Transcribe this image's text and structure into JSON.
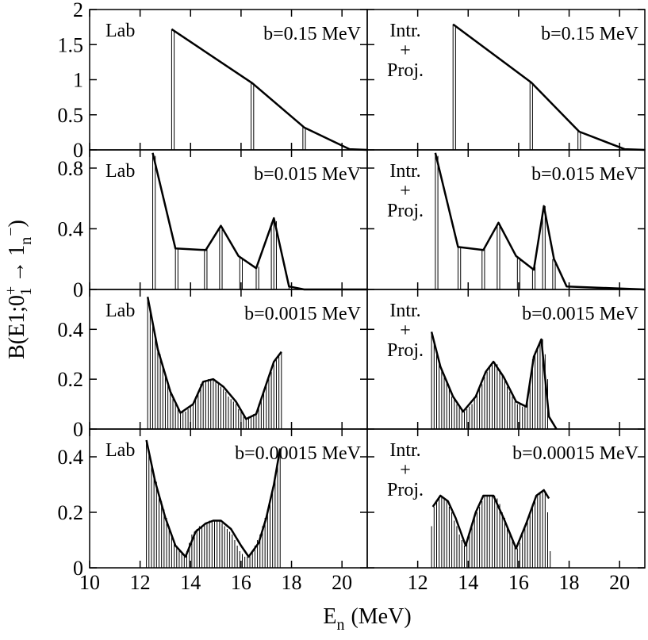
{
  "figure": {
    "ylabel": {
      "main": "B(E1;0",
      "sub1": "1",
      "sup1": "+",
      "arrow": "→",
      "one": "1",
      "sub2": "n",
      "sup2": "−",
      "close": ")"
    },
    "xlabel": {
      "main": "E",
      "sub": "n",
      "unit": "(MeV)"
    },
    "colors": {
      "line": "#000000",
      "background": "#ffffff"
    }
  },
  "chart_data": [
    {
      "type": "line",
      "panel": "lab-b-0.15",
      "label": "Lab",
      "label_lines": [
        "Lab"
      ],
      "annotation": "b=0.15 MeV",
      "xlim": [
        10,
        21
      ],
      "ylim": [
        0,
        2
      ],
      "xticks": [
        10,
        12,
        14,
        16,
        18,
        20
      ],
      "xtick_labels": [
        "10",
        "12",
        "14",
        "16",
        "18",
        "20"
      ],
      "yticks": [
        0,
        0.5,
        1,
        1.5,
        2
      ],
      "ytick_labels": [
        "0",
        "0.5",
        "1",
        "1.5",
        "2"
      ],
      "curve": {
        "x": [
          13.25,
          16.45,
          18.5,
          20.3,
          21
        ],
        "y": [
          1.72,
          0.95,
          0.32,
          0.01,
          0
        ]
      },
      "sticks": {
        "x": [
          13.25,
          13.35,
          16.4,
          16.5,
          18.45,
          18.55
        ],
        "y": [
          1.72,
          1.7,
          0.95,
          0.93,
          0.33,
          0.31
        ]
      }
    },
    {
      "type": "line",
      "panel": "intr-proj-b-0.15",
      "label": "Intr. + Proj.",
      "label_lines": [
        "Intr.",
        "+",
        "Proj."
      ],
      "annotation": "b=0.15 MeV",
      "xlim": [
        10,
        21
      ],
      "ylim": [
        0,
        2
      ],
      "xticks": [
        12,
        14,
        16,
        18,
        20
      ],
      "xtick_labels": [
        "12",
        "14",
        "16",
        "18",
        "20"
      ],
      "yticks": [
        0,
        0.5,
        1,
        1.5,
        2
      ],
      "ytick_labels": [],
      "curve": {
        "x": [
          13.4,
          16.5,
          18.4,
          20.2,
          21
        ],
        "y": [
          1.79,
          0.96,
          0.26,
          0.01,
          0
        ]
      },
      "sticks": {
        "x": [
          13.4,
          13.5,
          16.45,
          16.55,
          18.35,
          18.45
        ],
        "y": [
          1.79,
          1.77,
          0.96,
          0.94,
          0.27,
          0.25
        ]
      }
    },
    {
      "type": "line",
      "panel": "lab-b-0.015",
      "label": "Lab",
      "label_lines": [
        "Lab"
      ],
      "annotation": "b=0.015 MeV",
      "xlim": [
        10,
        21
      ],
      "ylim": [
        0,
        0.92
      ],
      "xticks": [
        10,
        12,
        14,
        16,
        18,
        20
      ],
      "xtick_labels": [
        "10",
        "12",
        "14",
        "16",
        "18",
        "20"
      ],
      "yticks": [
        0,
        0.4,
        0.8
      ],
      "ytick_labels": [
        "0",
        "0.4",
        "0.8"
      ],
      "curve": {
        "x": [
          12.5,
          13.4,
          14.6,
          15.2,
          15.9,
          16.6,
          17.3,
          17.9,
          18.5,
          21
        ],
        "y": [
          0.9,
          0.27,
          0.26,
          0.42,
          0.22,
          0.14,
          0.47,
          0.02,
          0,
          0
        ]
      },
      "sticks": {
        "x": [
          12.5,
          12.6,
          13.4,
          13.5,
          14.55,
          14.65,
          15.15,
          15.25,
          15.95,
          16.05,
          16.6,
          16.7,
          17.2,
          17.3,
          17.4,
          17.9
        ],
        "y": [
          0.9,
          0.88,
          0.27,
          0.27,
          0.26,
          0.27,
          0.41,
          0.41,
          0.22,
          0.21,
          0.14,
          0.15,
          0.44,
          0.47,
          0.45,
          0.03
        ]
      }
    },
    {
      "type": "line",
      "panel": "intr-proj-b-0.015",
      "label": "Intr. + Proj.",
      "label_lines": [
        "Intr.",
        "+",
        "Proj."
      ],
      "annotation": "b=0.015 MeV",
      "xlim": [
        10,
        21
      ],
      "ylim": [
        0,
        0.92
      ],
      "xticks": [
        12,
        14,
        16,
        18,
        20
      ],
      "xtick_labels": [
        "12",
        "14",
        "16",
        "18",
        "20"
      ],
      "yticks": [
        0,
        0.4,
        0.8
      ],
      "ytick_labels": [],
      "curve": {
        "x": [
          12.7,
          13.6,
          14.6,
          15.2,
          15.9,
          16.6,
          17.0,
          17.4,
          17.9,
          21
        ],
        "y": [
          0.9,
          0.28,
          0.26,
          0.44,
          0.22,
          0.13,
          0.55,
          0.2,
          0.02,
          0
        ]
      },
      "sticks": {
        "x": [
          12.7,
          12.8,
          13.6,
          13.7,
          14.55,
          14.65,
          15.15,
          15.25,
          15.95,
          16.05,
          16.55,
          16.65,
          16.95,
          17.05,
          17.35,
          17.45
        ],
        "y": [
          0.9,
          0.88,
          0.28,
          0.28,
          0.26,
          0.27,
          0.42,
          0.43,
          0.22,
          0.21,
          0.14,
          0.15,
          0.52,
          0.55,
          0.2,
          0.18
        ]
      }
    },
    {
      "type": "line",
      "panel": "lab-b-0.0015",
      "label": "Lab",
      "label_lines": [
        "Lab"
      ],
      "annotation": "b=0.0015 MeV",
      "xlim": [
        10,
        21
      ],
      "ylim": [
        0,
        0.56
      ],
      "xticks": [
        10,
        12,
        14,
        16,
        18,
        20
      ],
      "xtick_labels": [
        "10",
        "12",
        "14",
        "16",
        "18",
        "20"
      ],
      "yticks": [
        0,
        0.2,
        0.4
      ],
      "ytick_labels": [
        "0",
        "0.2",
        "0.4"
      ],
      "curve": {
        "x": [
          12.3,
          12.7,
          13.2,
          13.6,
          14.1,
          14.5,
          14.9,
          15.3,
          15.8,
          16.2,
          16.6,
          17.0,
          17.3,
          17.6
        ],
        "y": [
          0.53,
          0.32,
          0.15,
          0.065,
          0.1,
          0.19,
          0.2,
          0.17,
          0.11,
          0.04,
          0.06,
          0.18,
          0.27,
          0.31
        ]
      },
      "sticks": {
        "x": [
          12.3,
          12.4,
          12.5,
          12.6,
          12.7,
          12.8,
          12.9,
          13.0,
          13.1,
          13.2,
          13.3,
          13.4,
          13.5,
          13.6,
          13.7,
          13.8,
          13.9,
          14.0,
          14.1,
          14.2,
          14.3,
          14.4,
          14.5,
          14.6,
          14.7,
          14.8,
          14.9,
          15.0,
          15.1,
          15.2,
          15.3,
          15.4,
          15.5,
          15.6,
          15.7,
          15.8,
          15.9,
          16.0,
          16.1,
          16.2,
          16.3,
          16.4,
          16.5,
          16.6,
          16.7,
          16.8,
          16.9,
          17.0,
          17.1,
          17.2,
          17.3,
          17.4,
          17.5,
          17.6
        ],
        "y": [
          0.53,
          0.47,
          0.42,
          0.37,
          0.33,
          0.3,
          0.26,
          0.22,
          0.19,
          0.16,
          0.13,
          0.11,
          0.09,
          0.07,
          0.07,
          0.07,
          0.08,
          0.09,
          0.1,
          0.13,
          0.15,
          0.18,
          0.19,
          0.19,
          0.2,
          0.2,
          0.2,
          0.19,
          0.18,
          0.17,
          0.16,
          0.15,
          0.13,
          0.12,
          0.11,
          0.1,
          0.08,
          0.07,
          0.05,
          0.04,
          0.05,
          0.05,
          0.06,
          0.07,
          0.1,
          0.13,
          0.16,
          0.18,
          0.21,
          0.23,
          0.26,
          0.28,
          0.3,
          0.31
        ]
      }
    },
    {
      "type": "line",
      "panel": "intr-proj-b-0.0015",
      "label": "Intr. + Proj.",
      "label_lines": [
        "Intr.",
        "+",
        "Proj."
      ],
      "annotation": "b=0.0015 MeV",
      "xlim": [
        10,
        21
      ],
      "ylim": [
        0,
        0.56
      ],
      "xticks": [
        12,
        14,
        16,
        18,
        20
      ],
      "xtick_labels": [
        "12",
        "14",
        "16",
        "18",
        "20"
      ],
      "yticks": [
        0,
        0.2,
        0.4
      ],
      "ytick_labels": [],
      "curve": {
        "x": [
          12.55,
          12.9,
          13.4,
          13.8,
          14.3,
          14.7,
          15.0,
          15.4,
          15.9,
          16.3,
          16.6,
          16.9,
          17.2,
          17.5
        ],
        "y": [
          0.39,
          0.25,
          0.13,
          0.07,
          0.13,
          0.23,
          0.27,
          0.21,
          0.11,
          0.09,
          0.29,
          0.36,
          0.05,
          0
        ]
      },
      "sticks": {
        "x": [
          12.55,
          12.65,
          12.75,
          12.85,
          12.95,
          13.05,
          13.15,
          13.25,
          13.35,
          13.45,
          13.55,
          13.65,
          13.75,
          13.85,
          13.95,
          14.05,
          14.15,
          14.25,
          14.35,
          14.45,
          14.55,
          14.65,
          14.75,
          14.85,
          14.95,
          15.05,
          15.15,
          15.25,
          15.35,
          15.45,
          15.55,
          15.65,
          15.75,
          15.85,
          15.95,
          16.05,
          16.15,
          16.25,
          16.35,
          16.45,
          16.55,
          16.65,
          16.75,
          16.85,
          16.95,
          17.05,
          17.15
        ],
        "y": [
          0.39,
          0.35,
          0.3,
          0.27,
          0.24,
          0.21,
          0.19,
          0.16,
          0.13,
          0.12,
          0.1,
          0.09,
          0.08,
          0.07,
          0.08,
          0.09,
          0.1,
          0.12,
          0.14,
          0.16,
          0.18,
          0.21,
          0.23,
          0.25,
          0.26,
          0.27,
          0.26,
          0.24,
          0.22,
          0.2,
          0.17,
          0.15,
          0.13,
          0.11,
          0.1,
          0.1,
          0.09,
          0.09,
          0.12,
          0.2,
          0.28,
          0.31,
          0.33,
          0.35,
          0.36,
          0.3,
          0.2
        ]
      }
    },
    {
      "type": "line",
      "panel": "lab-b-0.00015",
      "label": "Lab",
      "label_lines": [
        "Lab"
      ],
      "annotation": "b=0.00015 MeV",
      "xlim": [
        10,
        21
      ],
      "ylim": [
        0,
        0.5
      ],
      "xticks": [
        10,
        12,
        14,
        16,
        18,
        20
      ],
      "xtick_labels": [
        "10",
        "12",
        "14",
        "16",
        "18",
        "20"
      ],
      "yticks": [
        0,
        0.2,
        0.4
      ],
      "ytick_labels": [
        "0",
        "0.2",
        "0.4"
      ],
      "curve": {
        "x": [
          12.25,
          12.6,
          13.0,
          13.4,
          13.8,
          14.2,
          14.6,
          14.9,
          15.2,
          15.6,
          16.0,
          16.3,
          16.7,
          17.0,
          17.3,
          17.55
        ],
        "y": [
          0.46,
          0.31,
          0.18,
          0.08,
          0.04,
          0.13,
          0.16,
          0.17,
          0.17,
          0.14,
          0.08,
          0.04,
          0.09,
          0.18,
          0.3,
          0.43
        ]
      },
      "sticks": {
        "x": [
          12.25,
          12.35,
          12.45,
          12.55,
          12.65,
          12.75,
          12.85,
          12.95,
          13.05,
          13.15,
          13.25,
          13.35,
          13.45,
          13.55,
          13.65,
          13.75,
          13.85,
          13.95,
          14.05,
          14.15,
          14.25,
          14.35,
          14.45,
          14.55,
          14.65,
          14.75,
          14.85,
          14.95,
          15.05,
          15.15,
          15.25,
          15.35,
          15.45,
          15.55,
          15.65,
          15.75,
          15.85,
          15.95,
          16.05,
          16.15,
          16.25,
          16.35,
          16.45,
          16.55,
          16.65,
          16.75,
          16.85,
          16.95,
          17.05,
          17.15,
          17.25,
          17.35,
          17.45,
          17.55
        ],
        "y": [
          0.46,
          0.42,
          0.38,
          0.34,
          0.31,
          0.27,
          0.24,
          0.21,
          0.18,
          0.15,
          0.12,
          0.1,
          0.08,
          0.06,
          0.05,
          0.04,
          0.06,
          0.09,
          0.12,
          0.13,
          0.14,
          0.15,
          0.15,
          0.16,
          0.16,
          0.17,
          0.17,
          0.17,
          0.17,
          0.17,
          0.16,
          0.15,
          0.14,
          0.13,
          0.12,
          0.1,
          0.08,
          0.06,
          0.05,
          0.04,
          0.04,
          0.05,
          0.06,
          0.08,
          0.1,
          0.12,
          0.15,
          0.18,
          0.21,
          0.25,
          0.29,
          0.33,
          0.38,
          0.43
        ]
      }
    },
    {
      "type": "line",
      "panel": "intr-proj-b-0.00015",
      "label": "Intr. + Proj.",
      "label_lines": [
        "Intr.",
        "+",
        "Proj."
      ],
      "annotation": "b=0.00015 MeV",
      "xlim": [
        10,
        21
      ],
      "ylim": [
        0,
        0.5
      ],
      "xticks": [
        12,
        14,
        16,
        18,
        20
      ],
      "xtick_labels": [
        "12",
        "14",
        "16",
        "18",
        "20"
      ],
      "yticks": [
        0,
        0.2,
        0.4
      ],
      "ytick_labels": [],
      "curve": {
        "x": [
          12.6,
          12.9,
          13.2,
          13.5,
          13.9,
          14.3,
          14.6,
          15.0,
          15.4,
          15.9,
          16.3,
          16.7,
          17.0,
          17.2
        ],
        "y": [
          0.22,
          0.26,
          0.24,
          0.18,
          0.08,
          0.2,
          0.26,
          0.26,
          0.18,
          0.07,
          0.16,
          0.26,
          0.28,
          0.25
        ]
      },
      "sticks": {
        "x": [
          12.55,
          12.65,
          12.75,
          12.85,
          12.95,
          13.05,
          13.15,
          13.25,
          13.35,
          13.45,
          13.55,
          13.65,
          13.75,
          13.85,
          13.95,
          14.05,
          14.15,
          14.25,
          14.35,
          14.45,
          14.55,
          14.65,
          14.75,
          14.85,
          14.95,
          15.05,
          15.15,
          15.25,
          15.35,
          15.45,
          15.55,
          15.65,
          15.75,
          15.85,
          15.95,
          16.05,
          16.15,
          16.25,
          16.35,
          16.45,
          16.55,
          16.65,
          16.75,
          16.85,
          16.95,
          17.05,
          17.15,
          17.25
        ],
        "y": [
          0.15,
          0.22,
          0.24,
          0.25,
          0.26,
          0.25,
          0.24,
          0.22,
          0.2,
          0.17,
          0.15,
          0.12,
          0.1,
          0.08,
          0.09,
          0.12,
          0.15,
          0.18,
          0.2,
          0.22,
          0.24,
          0.26,
          0.26,
          0.26,
          0.26,
          0.26,
          0.25,
          0.23,
          0.2,
          0.18,
          0.15,
          0.12,
          0.1,
          0.08,
          0.07,
          0.09,
          0.12,
          0.15,
          0.17,
          0.2,
          0.23,
          0.25,
          0.26,
          0.27,
          0.28,
          0.27,
          0.2,
          0.06
        ]
      }
    }
  ]
}
